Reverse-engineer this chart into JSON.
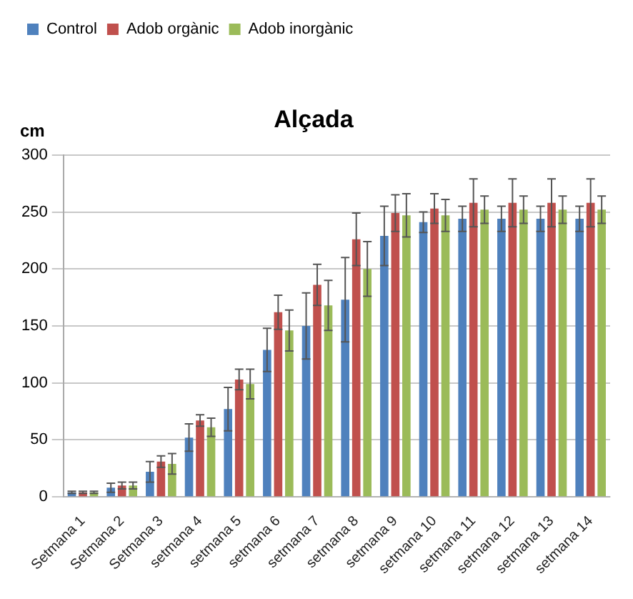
{
  "chart_data": {
    "type": "bar",
    "title": "Alçada",
    "ylabel": "cm",
    "categories": [
      "Setmana 1",
      "Setmana 2",
      "Setmana 3",
      "setmana 4",
      "setmana 5",
      "setmana 6",
      "setmana 7",
      "setmana 8",
      "setmana 9",
      "setmana 10",
      "setmana 11",
      "setmana 12",
      "setmana 13",
      "setmana 14"
    ],
    "series": [
      {
        "name": "Control",
        "color": "#4f81bd",
        "values": [
          4,
          8,
          22,
          52,
          77,
          129,
          150,
          173,
          229,
          241,
          244,
          244,
          244,
          244
        ],
        "errors": [
          1,
          4,
          9,
          12,
          19,
          19,
          29,
          37,
          26,
          9,
          11,
          11,
          11,
          11
        ]
      },
      {
        "name": "Adob orgànic",
        "color": "#c0504d",
        "values": [
          4,
          10,
          31,
          67,
          103,
          162,
          186,
          226,
          249,
          253,
          258,
          258,
          258,
          258
        ],
        "errors": [
          1,
          3,
          5,
          5,
          9,
          15,
          18,
          23,
          16,
          13,
          21,
          21,
          21,
          21
        ]
      },
      {
        "name": "Adob inorgànic",
        "color": "#9bbb59",
        "values": [
          4,
          10,
          29,
          61,
          99,
          146,
          168,
          200,
          247,
          247,
          252,
          252,
          252,
          252
        ],
        "errors": [
          1,
          3,
          9,
          8,
          13,
          18,
          22,
          24,
          19,
          14,
          12,
          12,
          12,
          12
        ]
      }
    ],
    "ylim": [
      0,
      300
    ],
    "yticks": [
      0,
      50,
      100,
      150,
      200,
      250,
      300
    ],
    "grid": "y",
    "legend": "top left"
  }
}
